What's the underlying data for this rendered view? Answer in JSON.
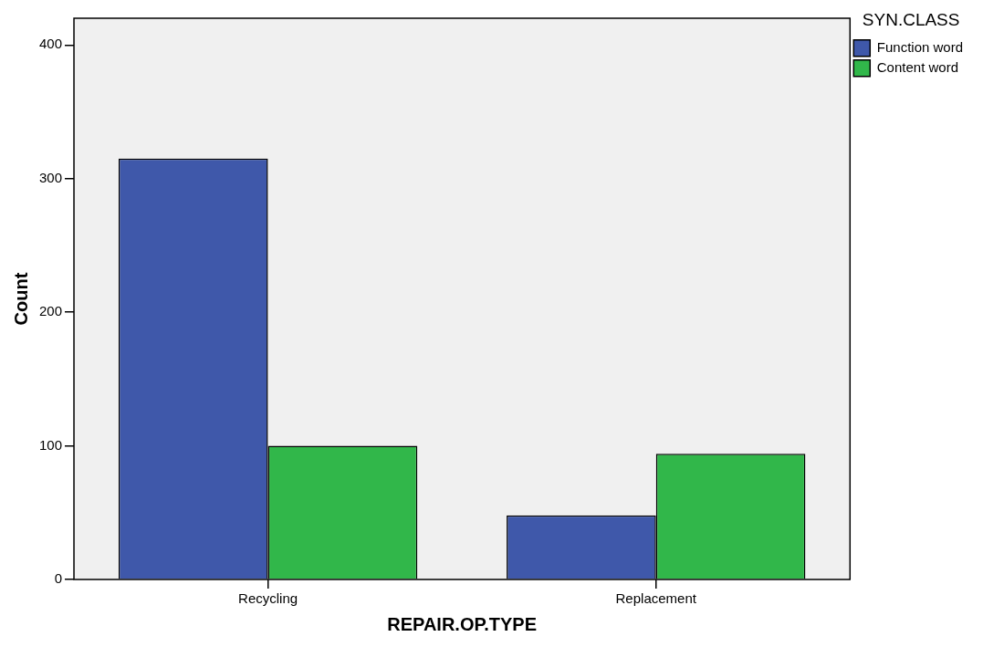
{
  "chart_data": {
    "type": "bar",
    "xlabel": "REPAIR.OP.TYPE",
    "ylabel": "Count",
    "legend_title": "SYN.CLASS",
    "categories": [
      "Recycling",
      "Replacement"
    ],
    "series": [
      {
        "name": "Function word",
        "color": "#3f58aa",
        "values": [
          315,
          48
        ]
      },
      {
        "name": "Content word",
        "color": "#31b74a",
        "values": [
          100,
          94
        ]
      }
    ],
    "ylim": [
      0,
      420
    ],
    "yticks": [
      0,
      100,
      200,
      300,
      400
    ],
    "grid": false,
    "legend": "top right"
  }
}
